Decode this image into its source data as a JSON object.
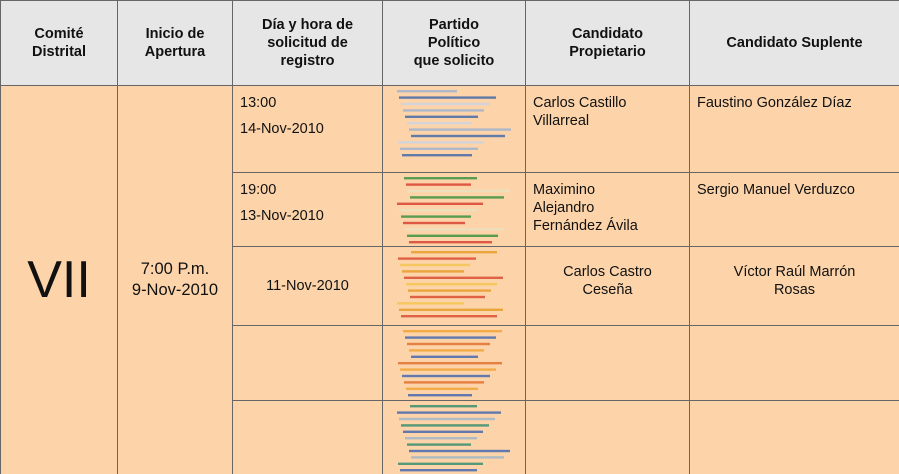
{
  "table": {
    "header": [
      [
        "Comité",
        "Distrital"
      ],
      [
        "Inicio de",
        "Apertura"
      ],
      [
        "Día y hora de",
        "solicitud de",
        "registro"
      ],
      [
        "Partido",
        "Político",
        "que solicito"
      ],
      [
        "Candidato",
        "Propietario"
      ],
      [
        "Candidato Suplente"
      ]
    ],
    "committee": "VII",
    "opening": [
      "7:00 P.m.",
      "9-Nov-2010"
    ],
    "rows": [
      {
        "time": "13:00",
        "date": "14-Nov-2010",
        "owner": [
          "Carlos Castillo",
          "Villarreal"
        ],
        "substitute": [
          "Faustino González Díaz"
        ]
      },
      {
        "time": "19:00",
        "date": "13-Nov-2010",
        "owner": [
          "Maximino",
          "Alejandro",
          "Fernández Ávila"
        ],
        "substitute": [
          "Sergio Manuel Verduzco"
        ]
      },
      {
        "date": "11-Nov-2010",
        "owner": [
          "Carlos Castro",
          "Ceseña"
        ],
        "substitute": [
          "Víctor Raúl Marrón",
          "Rosas"
        ]
      },
      {},
      {}
    ]
  }
}
